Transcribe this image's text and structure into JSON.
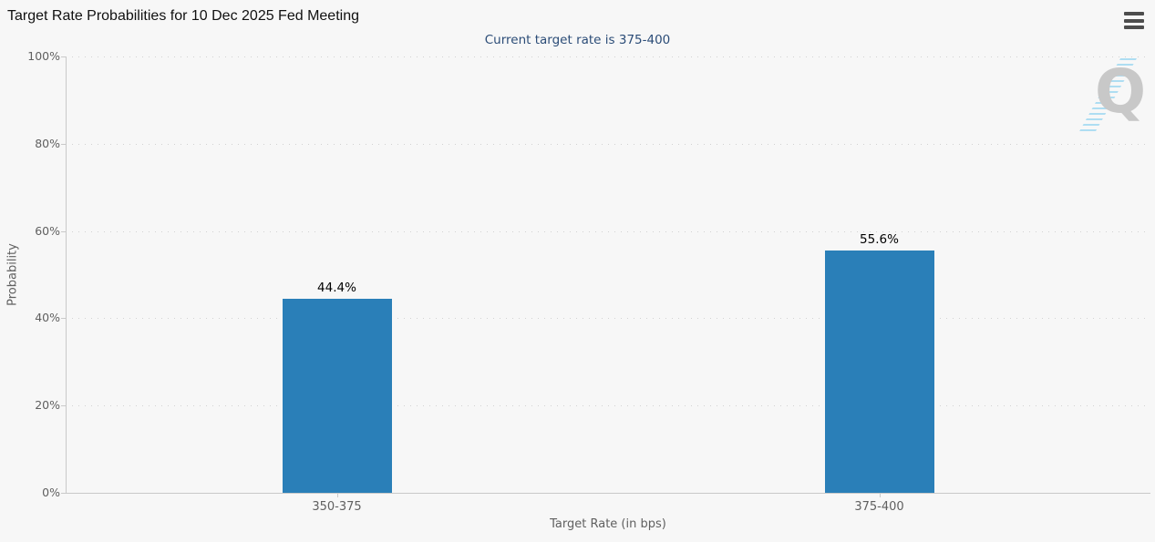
{
  "header": {
    "title": "Target Rate Probabilities for 10 Dec 2025 Fed Meeting"
  },
  "menu": {
    "icon": "hamburger-menu-icon"
  },
  "watermark": {
    "letter": "Q"
  },
  "chart_data": {
    "type": "bar",
    "title": "Target Rate Probabilities for 10 Dec 2025 Fed Meeting",
    "subtitle": "Current target rate is 375-400",
    "categories": [
      "350-375",
      "375-400"
    ],
    "values": [
      44.4,
      55.6
    ],
    "data_labels": [
      "44.4%",
      "55.6%"
    ],
    "xlabel": "Target Rate (in bps)",
    "ylabel": "Probability",
    "ylim": [
      0,
      100
    ],
    "ytick_step": 20,
    "ytick_labels": [
      "0%",
      "20%",
      "40%",
      "60%",
      "80%",
      "100%"
    ],
    "grid": "horizontal-dotted",
    "legend_position": "none",
    "colors": {
      "background": "#f7f7f7",
      "title_text": "#111111",
      "subtitle_text": "#2b4c77",
      "axis_text": "#606060",
      "axis_line": "#c9c9c9",
      "gridline": "#d2d2d2",
      "bar": "#2a7fb8",
      "data_label": "#000000",
      "watermark_gray": "#c8c8c8",
      "watermark_blue": "#aadcf2",
      "menu_icon": "#4d4d4d"
    }
  }
}
